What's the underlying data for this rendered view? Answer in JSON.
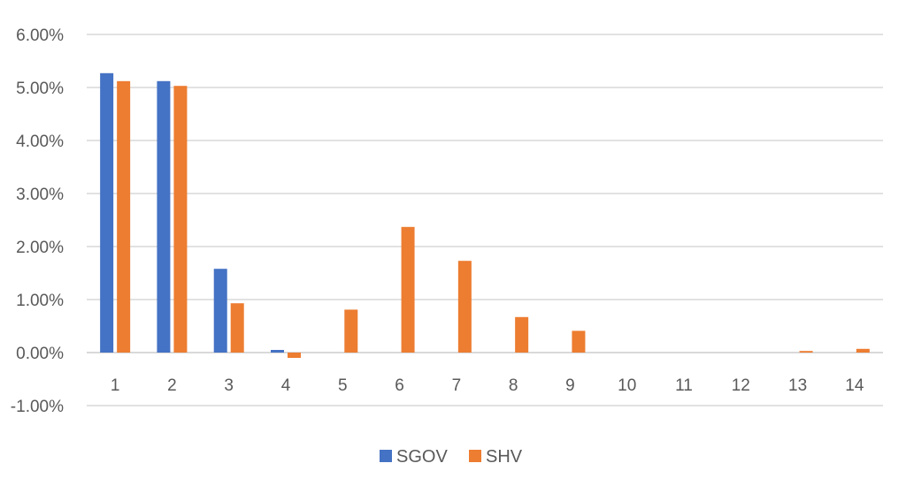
{
  "chart_data": {
    "type": "bar",
    "title": "",
    "xlabel": "",
    "ylabel": "",
    "categories": [
      "1",
      "2",
      "3",
      "4",
      "5",
      "6",
      "7",
      "8",
      "9",
      "10",
      "11",
      "12",
      "13",
      "14"
    ],
    "series": [
      {
        "name": "SGOV",
        "color": "#4472c4",
        "values": [
          5.27,
          5.12,
          1.58,
          0.05,
          0,
          0,
          0,
          0,
          0,
          0,
          0,
          0,
          0,
          0
        ]
      },
      {
        "name": "SHV",
        "color": "#ed7d31",
        "values": [
          5.12,
          5.03,
          0.93,
          -0.1,
          0.81,
          2.37,
          1.73,
          0.67,
          0.41,
          0,
          0,
          0,
          0.03,
          0.07
        ]
      }
    ],
    "ylim": [
      -1,
      6
    ],
    "y_ticks": [
      6,
      5,
      4,
      3,
      2,
      1,
      0,
      -1
    ],
    "y_tick_labels": [
      "6.00%",
      "5.00%",
      "4.00%",
      "3.00%",
      "2.00%",
      "1.00%",
      "0.00%",
      "-1.00%"
    ],
    "grid": true,
    "legend_position": "bottom-center"
  }
}
